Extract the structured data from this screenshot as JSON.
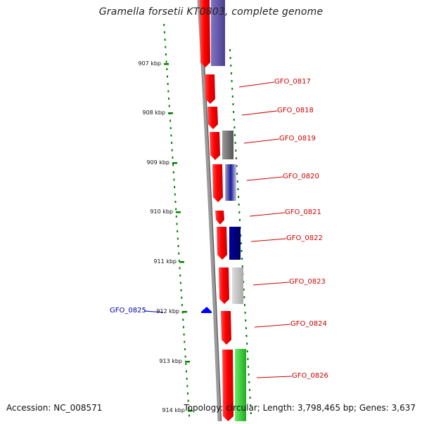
{
  "title": "Gramella forsetii KT0803, complete genome",
  "footer": {
    "accession": "Accession: NC_008571",
    "stats": "Topology: circular; Length: 3,798,465 bp; Genes: 3,637"
  },
  "ticks": [
    "907 kbp",
    "908 kbp",
    "909 kbp",
    "910 kbp",
    "911 kbp",
    "912 kbp",
    "913 kbp",
    "914 kbp"
  ],
  "genes_right": [
    "GFO_0817",
    "GFO_0818",
    "GFO_0819",
    "GFO_0820",
    "GFO_0821",
    "GFO_0822",
    "GFO_0823",
    "GFO_0824",
    "GFO_0826"
  ],
  "gene_left": "GFO_0825",
  "colors": {
    "backbone": "#888888",
    "gene_red": "#ff0000",
    "label_red": "#cc0000",
    "label_blue": "#0000aa",
    "dots_green": "#008000",
    "purple": "#5b4fa0",
    "navy": "#000080",
    "gray": "#777777",
    "lightgray": "#bbbbbb",
    "green": "#33cc33",
    "blue_marker": "#0000ff"
  }
}
